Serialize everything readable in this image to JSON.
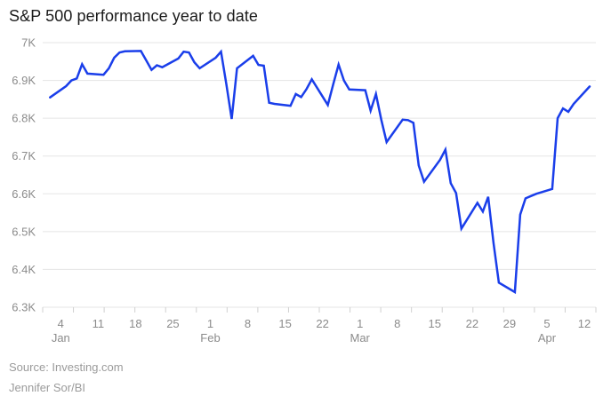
{
  "title": "S&P 500 performance year to date",
  "footer": {
    "source": "Source: Investing.com",
    "byline": "Jennifer Sor/BI"
  },
  "colors": {
    "line": "#1a3eea",
    "grid": "#e5e5e5",
    "tick": "#d0d0d0",
    "axis_label": "#8b8b8b"
  },
  "chart_data": {
    "type": "line",
    "title": "S&P 500 performance year to date",
    "xlabel": "",
    "ylabel": "",
    "ylim": [
      6300,
      7000
    ],
    "grid": "horizontal",
    "legend": "none",
    "y_ticks": [
      {
        "value": 7000,
        "label": "7K"
      },
      {
        "value": 6900,
        "label": "6.9K"
      },
      {
        "value": 6800,
        "label": "6.8K"
      },
      {
        "value": 6700,
        "label": "6.7K"
      },
      {
        "value": 6600,
        "label": "6.6K"
      },
      {
        "value": 6500,
        "label": "6.5K"
      },
      {
        "value": 6400,
        "label": "6.4K"
      },
      {
        "value": 6300,
        "label": "6.3K"
      }
    ],
    "x_ticks": [
      {
        "day": 4,
        "month": "Jan",
        "show_month": true
      },
      {
        "day": 11,
        "month": "Jan",
        "show_month": false
      },
      {
        "day": 18,
        "month": "Jan",
        "show_month": false
      },
      {
        "day": 25,
        "month": "Jan",
        "show_month": false
      },
      {
        "day": 1,
        "month": "Feb",
        "show_month": true
      },
      {
        "day": 8,
        "month": "Feb",
        "show_month": false
      },
      {
        "day": 15,
        "month": "Feb",
        "show_month": false
      },
      {
        "day": 22,
        "month": "Feb",
        "show_month": false
      },
      {
        "day": 1,
        "month": "Mar",
        "show_month": true
      },
      {
        "day": 8,
        "month": "Mar",
        "show_month": false
      },
      {
        "day": 15,
        "month": "Mar",
        "show_month": false
      },
      {
        "day": 22,
        "month": "Mar",
        "show_month": false
      },
      {
        "day": 29,
        "month": "Mar",
        "show_month": false
      },
      {
        "day": 5,
        "month": "Apr",
        "show_month": true
      },
      {
        "day": 12,
        "month": "Apr",
        "show_month": false
      }
    ],
    "series": [
      {
        "name": "S&P 500",
        "points": [
          {
            "date": "Jan 2",
            "value": 6855
          },
          {
            "date": "Jan 5",
            "value": 6885
          },
          {
            "date": "Jan 6",
            "value": 6900
          },
          {
            "date": "Jan 7",
            "value": 6905
          },
          {
            "date": "Jan 8",
            "value": 6943
          },
          {
            "date": "Jan 9",
            "value": 6918
          },
          {
            "date": "Jan 12",
            "value": 6915
          },
          {
            "date": "Jan 13",
            "value": 6932
          },
          {
            "date": "Jan 14",
            "value": 6960
          },
          {
            "date": "Jan 15",
            "value": 6974
          },
          {
            "date": "Jan 16",
            "value": 6977
          },
          {
            "date": "Jan 19",
            "value": 6978
          },
          {
            "date": "Jan 20",
            "value": 6953
          },
          {
            "date": "Jan 21",
            "value": 6928
          },
          {
            "date": "Jan 22",
            "value": 6940
          },
          {
            "date": "Jan 23",
            "value": 6935
          },
          {
            "date": "Jan 26",
            "value": 6958
          },
          {
            "date": "Jan 27",
            "value": 6976
          },
          {
            "date": "Jan 28",
            "value": 6974
          },
          {
            "date": "Jan 29",
            "value": 6948
          },
          {
            "date": "Jan 30",
            "value": 6932
          },
          {
            "date": "Feb 2",
            "value": 6960
          },
          {
            "date": "Feb 3",
            "value": 6976
          },
          {
            "date": "Feb 4",
            "value": 6890
          },
          {
            "date": "Feb 5",
            "value": 6798
          },
          {
            "date": "Feb 6",
            "value": 6932
          },
          {
            "date": "Feb 9",
            "value": 6965
          },
          {
            "date": "Feb 10",
            "value": 6941
          },
          {
            "date": "Feb 11",
            "value": 6939
          },
          {
            "date": "Feb 12",
            "value": 6841
          },
          {
            "date": "Feb 13",
            "value": 6838
          },
          {
            "date": "Feb 16",
            "value": 6833
          },
          {
            "date": "Feb 17",
            "value": 6864
          },
          {
            "date": "Feb 18",
            "value": 6856
          },
          {
            "date": "Feb 19",
            "value": 6877
          },
          {
            "date": "Feb 20",
            "value": 6903
          },
          {
            "date": "Feb 23",
            "value": 6835
          },
          {
            "date": "Feb 24",
            "value": 6890
          },
          {
            "date": "Feb 25",
            "value": 6942
          },
          {
            "date": "Feb 26",
            "value": 6900
          },
          {
            "date": "Feb 27",
            "value": 6876
          },
          {
            "date": "Mar 2",
            "value": 6874
          },
          {
            "date": "Mar 3",
            "value": 6820
          },
          {
            "date": "Mar 4",
            "value": 6864
          },
          {
            "date": "Mar 5",
            "value": 6796
          },
          {
            "date": "Mar 6",
            "value": 6737
          },
          {
            "date": "Mar 9",
            "value": 6796
          },
          {
            "date": "Mar 10",
            "value": 6795
          },
          {
            "date": "Mar 11",
            "value": 6788
          },
          {
            "date": "Mar 12",
            "value": 6675
          },
          {
            "date": "Mar 13",
            "value": 6632
          },
          {
            "date": "Mar 16",
            "value": 6690
          },
          {
            "date": "Mar 17",
            "value": 6717
          },
          {
            "date": "Mar 18",
            "value": 6628
          },
          {
            "date": "Mar 19",
            "value": 6602
          },
          {
            "date": "Mar 20",
            "value": 6508
          },
          {
            "date": "Mar 23",
            "value": 6576
          },
          {
            "date": "Mar 24",
            "value": 6553
          },
          {
            "date": "Mar 25",
            "value": 6592
          },
          {
            "date": "Mar 26",
            "value": 6470
          },
          {
            "date": "Mar 27",
            "value": 6365
          },
          {
            "date": "Mar 30",
            "value": 6340
          },
          {
            "date": "Mar 31",
            "value": 6545
          },
          {
            "date": "Apr 1",
            "value": 6588
          },
          {
            "date": "Apr 2",
            "value": 6594
          },
          {
            "date": "Apr 3",
            "value": 6600
          },
          {
            "date": "Apr 6",
            "value": 6613
          },
          {
            "date": "Apr 7",
            "value": 6800
          },
          {
            "date": "Apr 8",
            "value": 6826
          },
          {
            "date": "Apr 9",
            "value": 6817
          },
          {
            "date": "Apr 10",
            "value": 6838
          },
          {
            "date": "Apr 13",
            "value": 6884
          }
        ]
      }
    ]
  }
}
